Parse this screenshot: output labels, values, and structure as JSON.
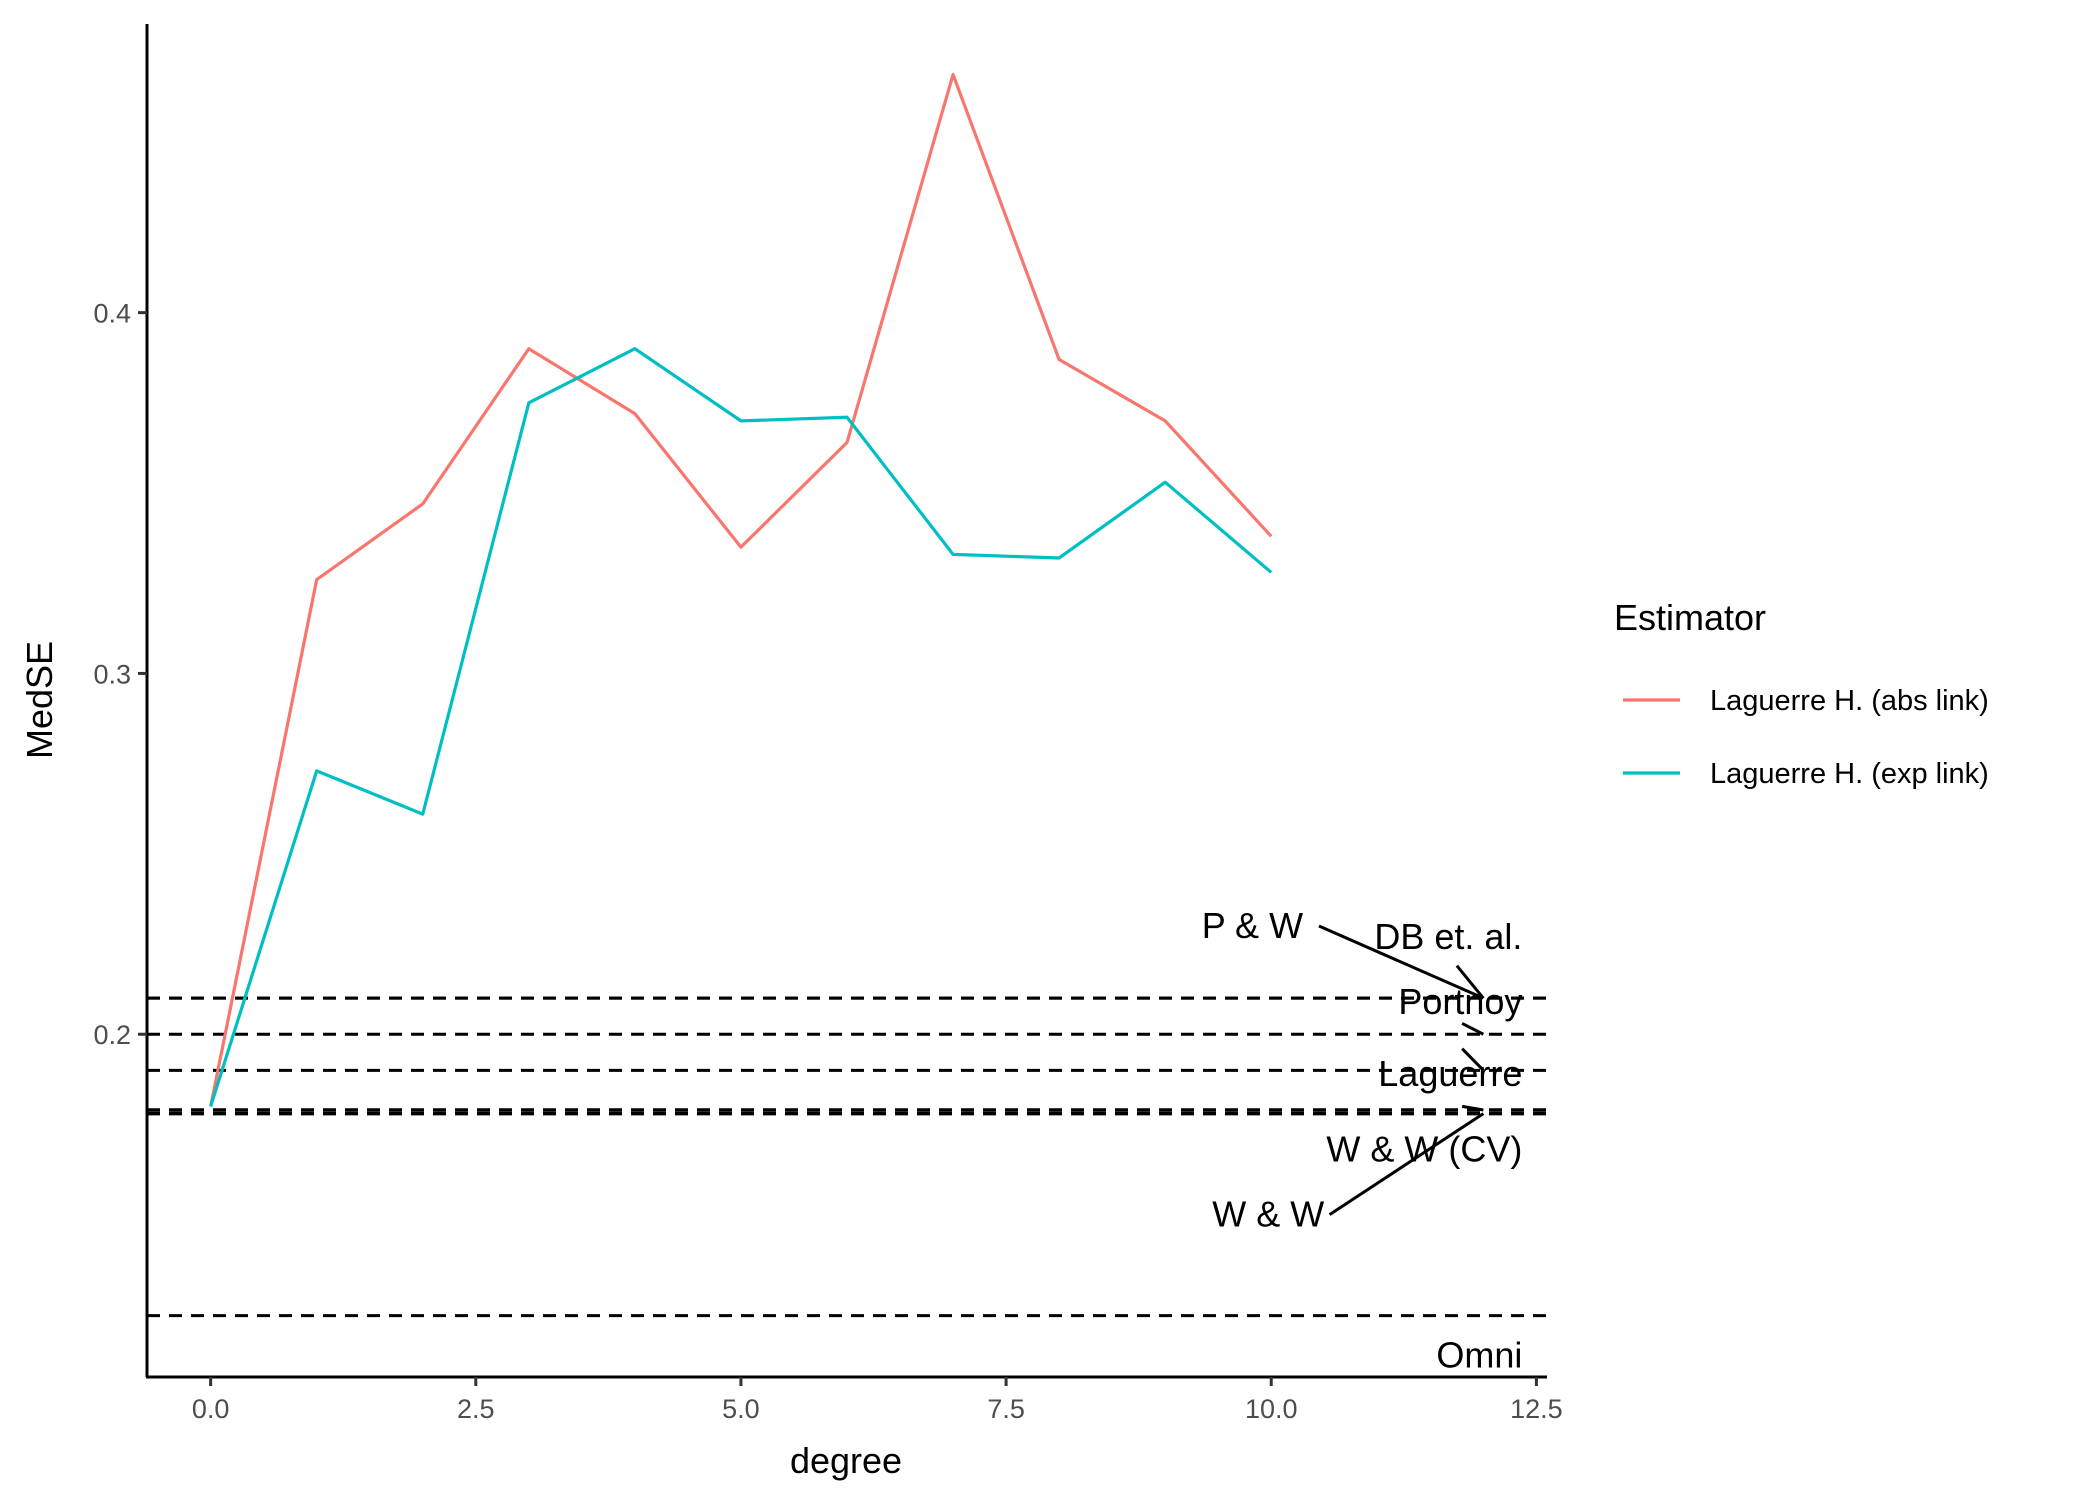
{
  "chart_data": {
    "type": "line",
    "xlabel": "degree",
    "ylabel": "MedSE",
    "xlim": [
      -0.6,
      12.6
    ],
    "ylim": [
      0.105,
      0.48
    ],
    "x_ticks": [
      0.0,
      2.5,
      5.0,
      7.5,
      10.0,
      12.5
    ],
    "x_tick_labels": [
      "0.0",
      "2.5",
      "5.0",
      "7.5",
      "10.0",
      "12.5"
    ],
    "y_ticks": [
      0.2,
      0.3,
      0.4
    ],
    "y_tick_labels": [
      "0.2",
      "0.3",
      "0.4"
    ],
    "grid": false,
    "legend": {
      "title": "Estimator",
      "position": "right"
    },
    "x": [
      0,
      1,
      2,
      3,
      4,
      5,
      6,
      7,
      8,
      9,
      10
    ],
    "series": [
      {
        "name": "Laguerre H. (abs link)",
        "color": "#F8766D",
        "values": [
          0.18,
          0.326,
          0.347,
          0.39,
          0.372,
          0.335,
          0.364,
          0.466,
          0.387,
          0.37,
          0.338
        ]
      },
      {
        "name": "Laguerre H. (exp link)",
        "color": "#00BFC4",
        "values": [
          0.18,
          0.273,
          0.261,
          0.375,
          0.39,
          0.37,
          0.371,
          0.333,
          0.332,
          0.353,
          0.328
        ]
      }
    ],
    "reference_lines": [
      {
        "name": "P & W",
        "value": 0.21,
        "label_pos": [
          10.2,
          0.23
        ]
      },
      {
        "name": "DB et. al.",
        "value": 0.21,
        "label_pos": [
          11.55,
          0.227
        ]
      },
      {
        "name": "Portnoy",
        "value": 0.2,
        "label_pos": [
          11.55,
          0.209
        ]
      },
      {
        "name": "Laguerre",
        "value": 0.19,
        "label_pos": [
          11.55,
          0.189
        ]
      },
      {
        "name": "W & W (CV)",
        "value": 0.179,
        "label_pos": [
          11.55,
          0.168
        ]
      },
      {
        "name": "W & W",
        "value": 0.178,
        "label_pos": [
          10.35,
          0.15
        ]
      },
      {
        "name": "Omni",
        "value": 0.122,
        "label_pos": [
          11.55,
          0.111
        ]
      }
    ]
  }
}
